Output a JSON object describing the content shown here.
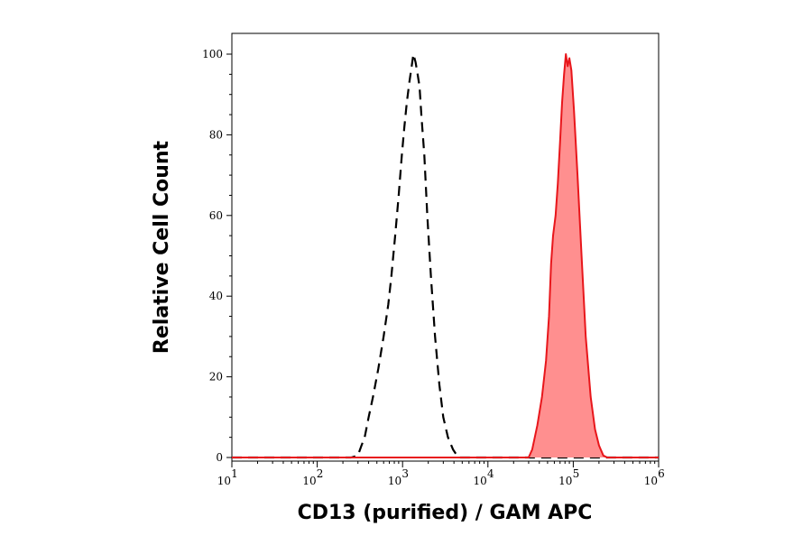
{
  "chart_data": {
    "type": "area",
    "xlabel": "CD13 (purified) / GAM APC",
    "ylabel": "Relative Cell Count",
    "x_scale": "log",
    "xlim": [
      10,
      1000000
    ],
    "ylim": [
      0,
      100
    ],
    "x_ticks": [
      {
        "value": 10,
        "base": "10",
        "exp": "1"
      },
      {
        "value": 100,
        "base": "10",
        "exp": "2"
      },
      {
        "value": 1000,
        "base": "10",
        "exp": "3"
      },
      {
        "value": 10000,
        "base": "10",
        "exp": "4"
      },
      {
        "value": 100000,
        "base": "10",
        "exp": "5"
      },
      {
        "value": 1000000,
        "base": "10",
        "exp": "6"
      }
    ],
    "y_ticks": [
      0,
      20,
      40,
      60,
      80,
      100
    ],
    "grid": false,
    "legend": "none",
    "series": [
      {
        "style": "dashed",
        "color": "#000000",
        "fill": "none",
        "points": [
          [
            10,
            0
          ],
          [
            250,
            0
          ],
          [
            300,
            0.5
          ],
          [
            330,
            3
          ],
          [
            360,
            5
          ],
          [
            400,
            10
          ],
          [
            450,
            15
          ],
          [
            520,
            22
          ],
          [
            600,
            30
          ],
          [
            680,
            38
          ],
          [
            740,
            45
          ],
          [
            820,
            55
          ],
          [
            900,
            65
          ],
          [
            980,
            75
          ],
          [
            1050,
            82
          ],
          [
            1120,
            88
          ],
          [
            1200,
            93
          ],
          [
            1280,
            97
          ],
          [
            1340,
            100
          ],
          [
            1420,
            98
          ],
          [
            1500,
            95
          ],
          [
            1580,
            92
          ],
          [
            1660,
            85
          ],
          [
            1800,
            75
          ],
          [
            1950,
            60
          ],
          [
            2150,
            45
          ],
          [
            2400,
            30
          ],
          [
            2700,
            18
          ],
          [
            3000,
            10
          ],
          [
            3400,
            5
          ],
          [
            3900,
            2
          ],
          [
            4500,
            0
          ],
          [
            1000000,
            0
          ]
        ]
      },
      {
        "style": "solid",
        "color": "#e8161b",
        "fill": "#ff8f8f",
        "points": [
          [
            10,
            0
          ],
          [
            30000,
            0
          ],
          [
            33000,
            2
          ],
          [
            38000,
            8
          ],
          [
            43000,
            15
          ],
          [
            48000,
            24
          ],
          [
            52000,
            35
          ],
          [
            55000,
            48
          ],
          [
            58000,
            55
          ],
          [
            62000,
            60
          ],
          [
            66000,
            68
          ],
          [
            70000,
            78
          ],
          [
            74000,
            88
          ],
          [
            78000,
            95
          ],
          [
            82000,
            100
          ],
          [
            86000,
            97
          ],
          [
            90000,
            99
          ],
          [
            95000,
            96
          ],
          [
            102000,
            86
          ],
          [
            112000,
            70
          ],
          [
            125000,
            50
          ],
          [
            140000,
            30
          ],
          [
            160000,
            15
          ],
          [
            180000,
            7
          ],
          [
            200000,
            3
          ],
          [
            225000,
            0.5
          ],
          [
            250000,
            0
          ],
          [
            1000000,
            0
          ]
        ]
      }
    ]
  }
}
